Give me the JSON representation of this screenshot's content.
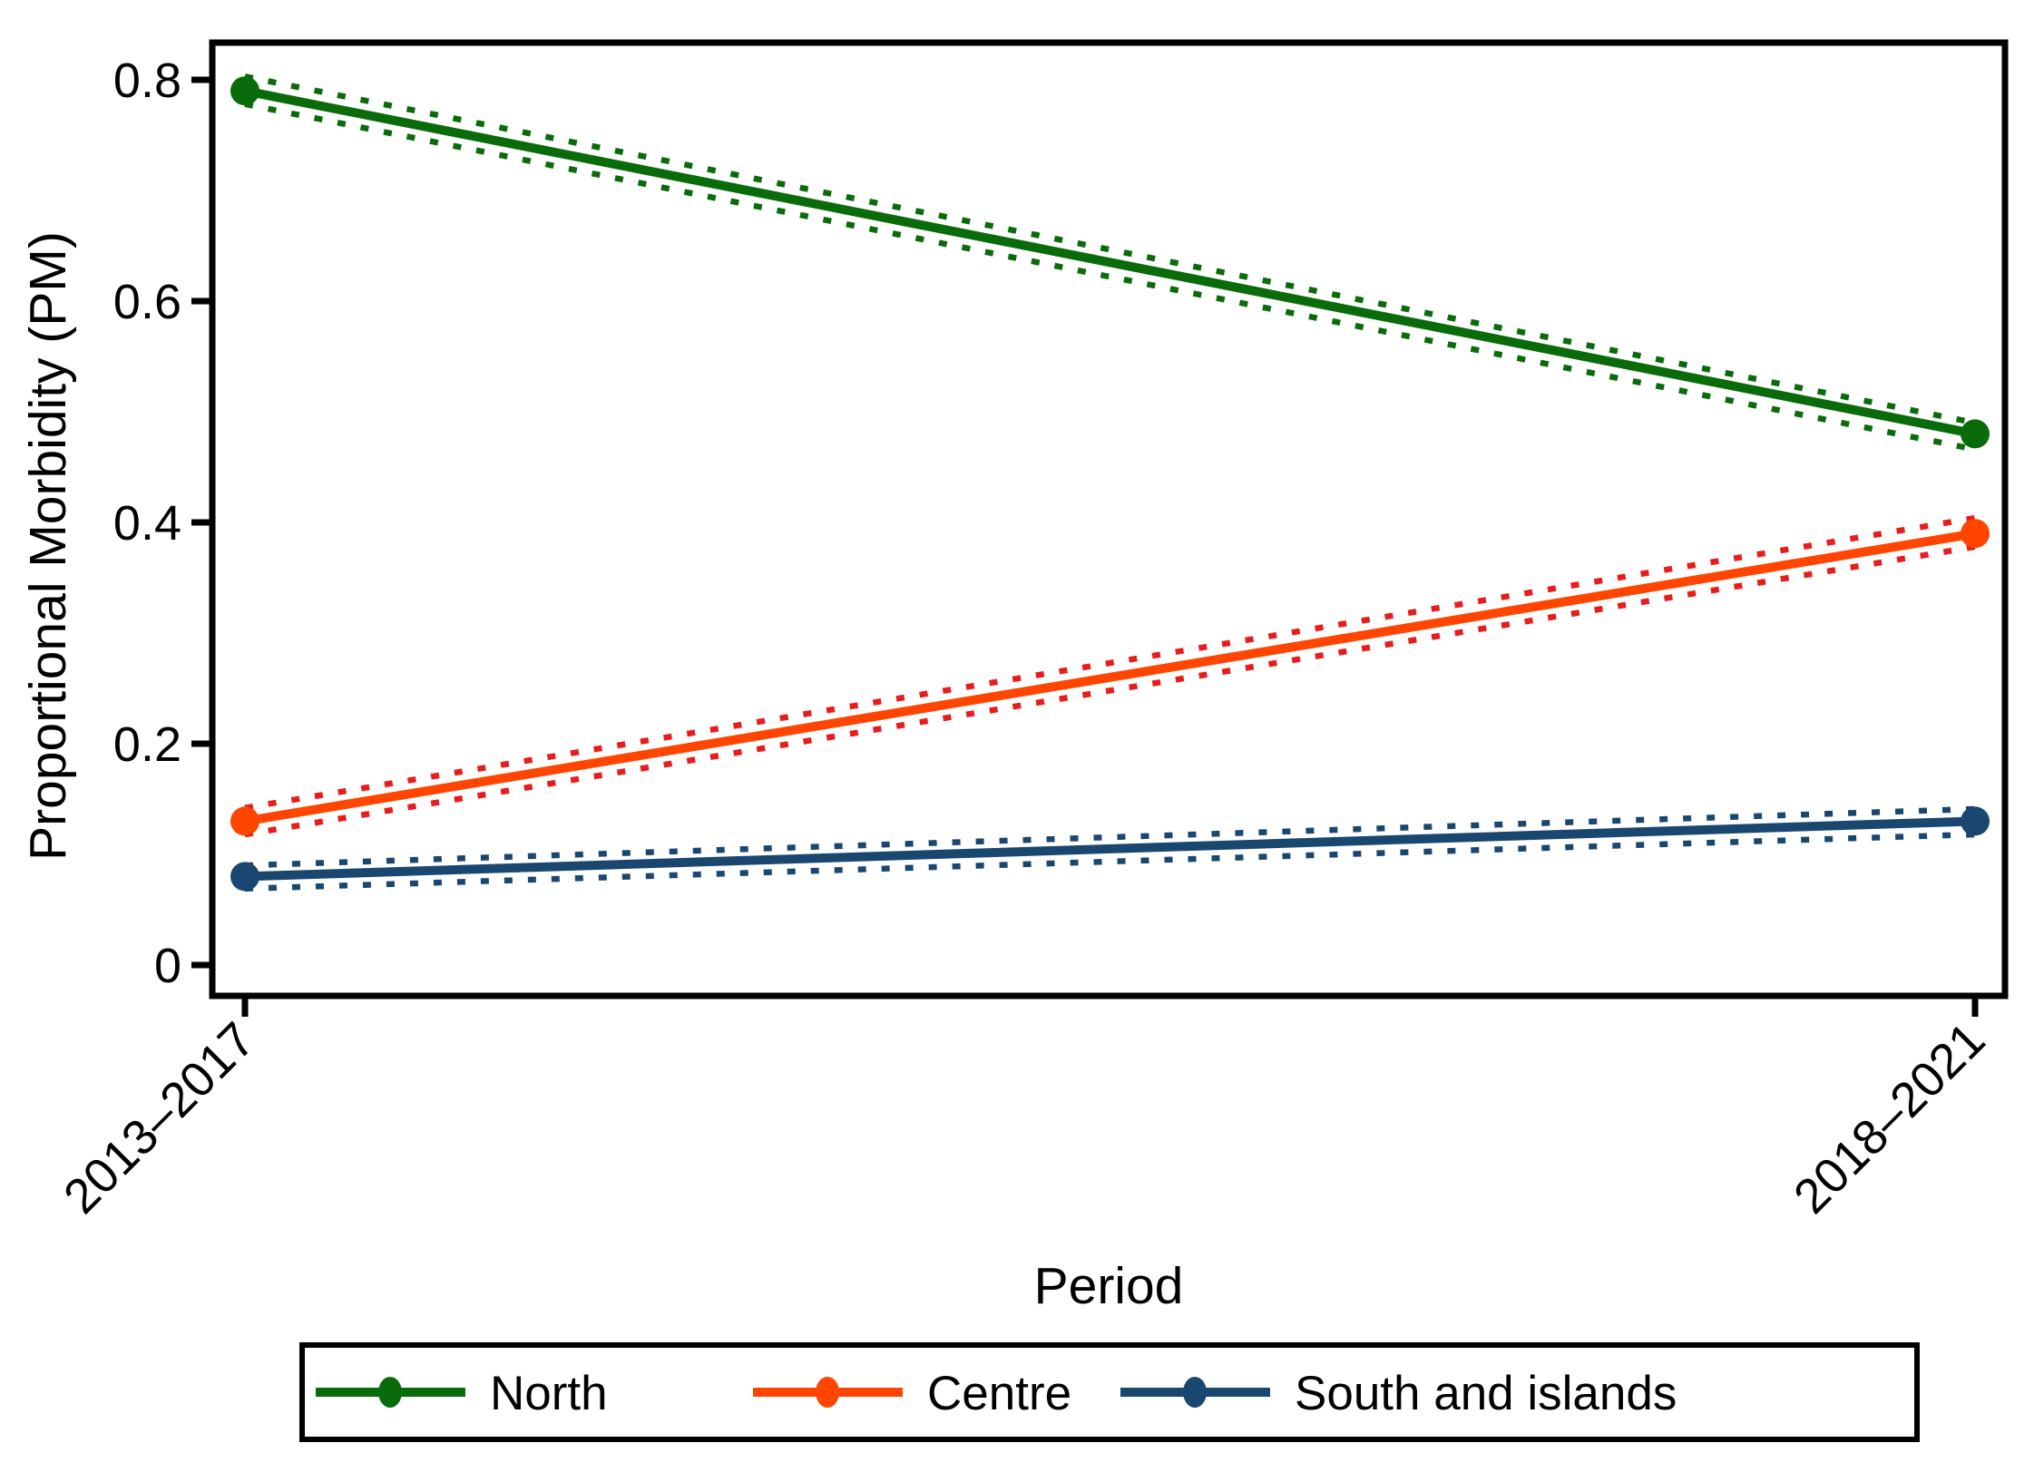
{
  "figure": {
    "background_color": "#ffffff",
    "axis_color": "#000000"
  },
  "chart_data": {
    "type": "line",
    "title": "",
    "xlabel": "Period",
    "ylabel": "Proportional Morbidity (PM)",
    "categories": [
      "2013–2017",
      "2018–2021"
    ],
    "yticks": [
      0,
      0.2,
      0.4,
      0.6,
      0.8
    ],
    "ytick_labels": [
      "0",
      "0.2",
      "0.4",
      "0.6",
      "0.8"
    ],
    "ylim": [
      -0.028,
      0.834
    ],
    "grid": false,
    "legend_position": "bottom",
    "ci_style": "dotted",
    "series": [
      {
        "name": "North",
        "color": "#0a6b0a",
        "ci_color": "#0a6b0a",
        "values": [
          0.79,
          0.48
        ],
        "ci_lower": [
          0.778,
          0.466
        ],
        "ci_upper": [
          0.803,
          0.49
        ]
      },
      {
        "name": "Centre",
        "color": "#ff4500",
        "ci_color": "#e81c1c",
        "values": [
          0.13,
          0.39
        ],
        "ci_lower": [
          0.118,
          0.378
        ],
        "ci_upper": [
          0.142,
          0.404
        ]
      },
      {
        "name": "South and islands",
        "color": "#1a476f",
        "ci_color": "#1a476f",
        "values": [
          0.08,
          0.13
        ],
        "ci_lower": [
          0.069,
          0.118
        ],
        "ci_upper": [
          0.09,
          0.141
        ]
      }
    ]
  }
}
